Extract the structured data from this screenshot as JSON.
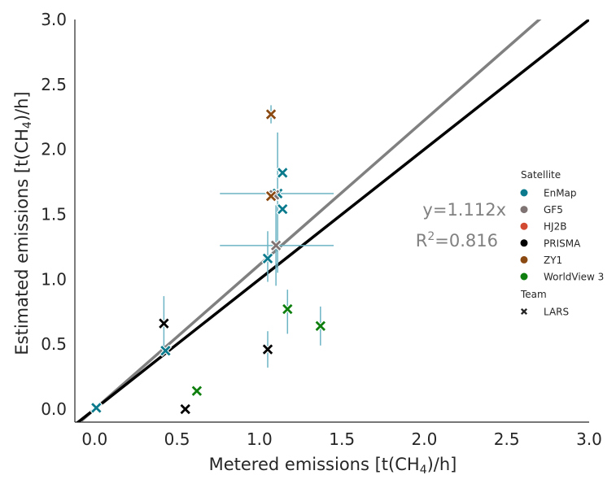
{
  "chart_data": {
    "type": "scatter",
    "xlabel": {
      "pre": "Metered emissions [t(CH",
      "sub": "4",
      "post": ")/h]"
    },
    "ylabel": {
      "pre": "Estimated emissions [t(CH",
      "sub": "4",
      "post": ")/h]"
    },
    "xlim": [
      -0.12,
      3.0
    ],
    "ylim": [
      -0.1,
      3.0
    ],
    "xticks": [
      "0.0",
      "0.5",
      "1.0",
      "1.5",
      "2.0",
      "2.5",
      "3.0"
    ],
    "yticks": [
      "0.0",
      "0.5",
      "1.0",
      "1.5",
      "2.0",
      "2.5",
      "3.0"
    ],
    "grid": false,
    "fit_line": {
      "slope": 1.112,
      "color": "#808080"
    },
    "identity_line": {
      "slope": 1.0,
      "color": "#000000"
    },
    "annotation": {
      "equation": "y=1.112x",
      "r2_pre": "R",
      "r2_sup": "2",
      "r2_post": "=0.816"
    },
    "legend": {
      "position": "right",
      "satellite_title": "Satellite",
      "satellites": [
        {
          "name": "EnMap",
          "color": "#0a7a8c"
        },
        {
          "name": "GF5",
          "color": "#7f7473"
        },
        {
          "name": "HJ2B",
          "color": "#d24a31"
        },
        {
          "name": "PRISMA",
          "color": "#000000"
        },
        {
          "name": "ZY1",
          "color": "#8a4a12"
        },
        {
          "name": "WorldView 3",
          "color": "#0e7f0e"
        }
      ],
      "team_title": "Team",
      "teams": [
        {
          "name": "LARS",
          "marker": "x-icon"
        }
      ]
    },
    "series": [
      {
        "name": "EnMap",
        "color": "#0a7a8c",
        "points": [
          {
            "x": 0.01,
            "y": 0.01
          },
          {
            "x": 0.43,
            "y": 0.45
          },
          {
            "x": 1.14,
            "y": 1.82
          },
          {
            "x": 1.14,
            "y": 1.54
          },
          {
            "x": 1.11,
            "y": 1.66,
            "xerr": [
              0.76,
              1.45
            ],
            "yerr": [
              1.05,
              2.13
            ]
          },
          {
            "x": 1.05,
            "y": 1.16,
            "yerr": [
              0.98,
              1.37
            ]
          }
        ]
      },
      {
        "name": "GF5",
        "color": "#7f7473",
        "points": [
          {
            "x": 1.09,
            "y": 1.65
          },
          {
            "x": 1.1,
            "y": 1.26,
            "xerr": [
              0.76,
              1.45
            ],
            "yerr": [
              0.95,
              1.57
            ]
          }
        ]
      },
      {
        "name": "PRISMA",
        "color": "#000000",
        "points": [
          {
            "x": 0.42,
            "y": 0.66,
            "yerr": [
              0.45,
              0.87
            ]
          },
          {
            "x": 0.55,
            "y": 0.0
          },
          {
            "x": 1.05,
            "y": 0.46,
            "yerr": [
              0.32,
              0.6
            ]
          }
        ]
      },
      {
        "name": "ZY1",
        "color": "#8a4a12",
        "points": [
          {
            "x": 1.07,
            "y": 2.27,
            "yerr": [
              2.2,
              2.34
            ]
          },
          {
            "x": 1.07,
            "y": 1.64
          }
        ]
      },
      {
        "name": "WorldView 3",
        "color": "#0e7f0e",
        "points": [
          {
            "x": 0.62,
            "y": 0.14
          },
          {
            "x": 1.17,
            "y": 0.77,
            "yerr": [
              0.58,
              0.92
            ]
          },
          {
            "x": 1.37,
            "y": 0.64,
            "yerr": [
              0.49,
              0.79
            ]
          }
        ]
      }
    ]
  }
}
